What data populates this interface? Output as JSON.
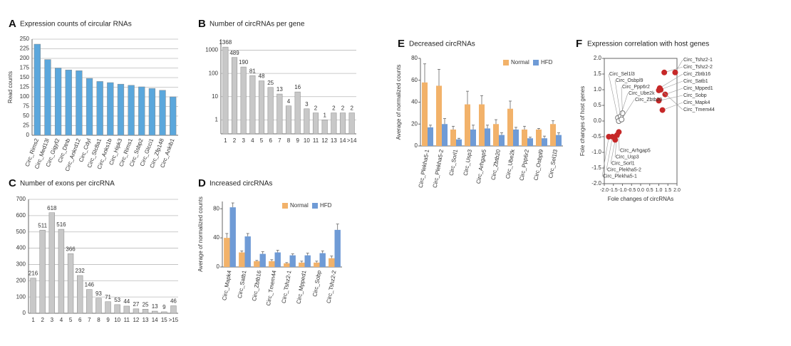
{
  "chart_data": [
    {
      "type": "bar",
      "panel": "A",
      "title": "Expression counts of circular RNAs",
      "y_label": "Read counts",
      "categories": [
        "Circ_Rims2",
        "Circ_Med13l",
        "Circ_Gigyf2",
        "Circ_Dtnb",
        "Circ_Ankrd12",
        "Circ_Cdyl",
        "Circ_Slc8a1",
        "Circ_Anks1b",
        "Circ_Hipk3",
        "Circ_Rims1",
        "Circ_Ssbp2",
        "Circ_Glcci1",
        "Circ_Zfp148",
        "Circ_Ankib1"
      ],
      "values": [
        237,
        197,
        175,
        170,
        168,
        148,
        140,
        137,
        133,
        130,
        126,
        122,
        117,
        100
      ],
      "color": "#5ba7dc",
      "ylim": [
        0,
        250
      ],
      "yticks": [
        0,
        25,
        50,
        75,
        100,
        125,
        150,
        175,
        200,
        225,
        250
      ],
      "grid": true
    },
    {
      "type": "bar",
      "panel": "B",
      "title": "Number of circRNAs per gene",
      "log_y": true,
      "categories": [
        "1",
        "2",
        "3",
        "4",
        "5",
        "6",
        "7",
        "8",
        "9",
        "10",
        "11",
        "12",
        "13",
        "14",
        ">14"
      ],
      "values": [
        1368,
        489,
        190,
        81,
        48,
        25,
        13,
        4,
        16,
        3,
        2,
        1,
        2,
        2,
        2
      ],
      "show_values": true,
      "color": "#c8c8c8",
      "ylim": [
        0.25,
        3000
      ],
      "yticks": [
        1,
        10,
        100,
        1000
      ],
      "grid": true
    },
    {
      "type": "bar",
      "panel": "C",
      "title": "Number of exons per circRNA",
      "categories": [
        "1",
        "2",
        "3",
        "4",
        "5",
        "6",
        "7",
        "8",
        "9",
        "10",
        "11",
        "12",
        "13",
        "14",
        "15",
        ">15"
      ],
      "values": [
        216,
        511,
        618,
        516,
        366,
        232,
        146,
        93,
        71,
        53,
        44,
        27,
        25,
        13,
        9,
        46
      ],
      "show_values": true,
      "color": "#c8c8c8",
      "ylim": [
        0,
        700
      ],
      "yticks": [
        0,
        100,
        200,
        300,
        400,
        500,
        600,
        700
      ],
      "grid": true
    },
    {
      "type": "groupbar",
      "panel": "D",
      "title": "Increased circRNAs",
      "y_label": "Average of normalized counts",
      "categories": [
        "Circ_Mapk4",
        "Circ_Satb1",
        "Circ_Zbtb16",
        "Circ_Tmem44",
        "Circ_Tshz2-1",
        "Circ_Mpped1",
        "Circ_Sobp",
        "Circ_Tshz2-2"
      ],
      "series": [
        {
          "name": "Normal",
          "color": "#f2b26a",
          "values": [
            40,
            20,
            8,
            8,
            5,
            6,
            6,
            12
          ],
          "errors": [
            6,
            2,
            1,
            2,
            1,
            2,
            2,
            3
          ]
        },
        {
          "name": "HFD",
          "color": "#6f9bd6",
          "values": [
            82,
            42,
            18,
            20,
            16,
            16,
            19,
            51
          ],
          "errors": [
            6,
            4,
            3,
            3,
            2,
            3,
            3,
            8
          ]
        }
      ],
      "ylim": [
        0,
        90
      ],
      "yticks": [
        0,
        40,
        80
      ],
      "legend": "top-right"
    },
    {
      "type": "groupbar",
      "panel": "E",
      "title": "Decreased circRNAs",
      "y_label": "Average of normalized counts",
      "categories": [
        "Circ_Plekha5-1",
        "Circ_Plekha5-2",
        "Circ_Sorl1",
        "Circ_Usp3",
        "Circ_Arhgap5",
        "Circ_Zbtb20",
        "Circ_Ube2k",
        "Circ_Ppp6r2",
        "Circ_Osbpl9",
        "Circ_Sel1l3"
      ],
      "series": [
        {
          "name": "Normal",
          "color": "#f2b26a",
          "values": [
            58,
            55,
            15,
            38,
            38,
            20,
            34,
            15,
            15,
            20
          ],
          "errors": [
            17,
            15,
            3,
            12,
            8,
            4,
            7,
            3,
            1,
            3
          ]
        },
        {
          "name": "HFD",
          "color": "#6f9bd6",
          "values": [
            17,
            20,
            6,
            15,
            16,
            10,
            15,
            7,
            7,
            10
          ],
          "errors": [
            2,
            5,
            1,
            4,
            3,
            2,
            2,
            1,
            2,
            2
          ]
        }
      ],
      "ylim": [
        0,
        80
      ],
      "yticks": [
        0,
        20,
        40,
        60,
        80
      ],
      "legend": "top-right"
    },
    {
      "type": "scatter",
      "panel": "F",
      "title": "Expression correlation with host genes",
      "x_label": "Fole changes of circRNAs",
      "y_label": "Fole changes of host genes",
      "points": [
        {
          "label": "Circ_Tshz2-1",
          "x": 1.9,
          "y": 1.55,
          "color": "#c62828"
        },
        {
          "label": "Circ_Tshz2-2",
          "x": 1.3,
          "y": 1.55,
          "color": "#c62828"
        },
        {
          "label": "Circ_Zbtb16",
          "x": 1.05,
          "y": 1.05,
          "color": "#c62828"
        },
        {
          "label": "Circ_Satb1",
          "x": 1.0,
          "y": 0.98,
          "color": "#c62828"
        },
        {
          "label": "Circ_Mpped1",
          "x": 1.35,
          "y": 0.85,
          "color": "#c62828"
        },
        {
          "label": "Circ_Sobp",
          "x": 1.0,
          "y": 0.65,
          "color": "#c62828"
        },
        {
          "label": "Circ_Mapk4",
          "x": 1.2,
          "y": 0.35,
          "color": "#c62828"
        },
        {
          "label": "Circ_Tmem44",
          "x": 1.1,
          "y": 1.0,
          "color": "#c62828"
        },
        {
          "label": "Circ_Sel1l3",
          "x": -1.25,
          "y": 0.1,
          "color": "#ffffff"
        },
        {
          "label": "Circ_Osbpl9",
          "x": -1.1,
          "y": 0.15,
          "color": "#ffffff"
        },
        {
          "label": "Circ_Ppp6r2",
          "x": -1.0,
          "y": 0.25,
          "color": "#ffffff"
        },
        {
          "label": "Circ_Ube2k",
          "x": -1.2,
          "y": 0.0,
          "color": "#ffffff"
        },
        {
          "label": "Circ_Zbtb20",
          "x": -1.05,
          "y": 0.05,
          "color": "#ffffff"
        },
        {
          "label": "Circ_Arhgap5",
          "x": -1.2,
          "y": -0.35,
          "color": "#c62828"
        },
        {
          "label": "Circ_Usp3",
          "x": -1.3,
          "y": -0.45,
          "color": "#c62828"
        },
        {
          "label": "Circ_Sorl1",
          "x": -1.4,
          "y": -0.6,
          "color": "#c62828"
        },
        {
          "label": "Circ_Plekha5-2",
          "x": -1.55,
          "y": -0.5,
          "color": "#c62828"
        },
        {
          "label": "Circ_Plekha5-1",
          "x": -1.75,
          "y": -0.5,
          "color": "#c62828"
        }
      ],
      "xlim": [
        -2,
        2
      ],
      "ylim": [
        -2,
        2
      ],
      "xticks": [
        {
          "value": -2,
          "label": "-2.0"
        },
        {
          "value": -1.5,
          "label": "-1.5"
        },
        {
          "value": -1,
          "label": "-1.0"
        },
        {
          "value": -0.5,
          "label": "-0.5"
        },
        {
          "value": 0,
          "label": "0.0"
        },
        {
          "value": 0.5,
          "label": "0.5"
        },
        {
          "value": 1,
          "label": "1.0"
        },
        {
          "value": 1.5,
          "label": "1.5"
        },
        {
          "value": 2,
          "label": "2.0"
        }
      ],
      "yticks": [
        {
          "value": -2,
          "label": "-2.0"
        },
        {
          "value": -1.5,
          "label": "-1.5"
        },
        {
          "value": -1,
          "label": "-1.0"
        },
        {
          "value": -0.5,
          "label": "-0.5"
        },
        {
          "value": 0,
          "label": "0.0"
        },
        {
          "value": 0.5,
          "label": "0.5"
        },
        {
          "value": 1,
          "label": "1.0"
        },
        {
          "value": 1.5,
          "label": "1.5"
        },
        {
          "value": 2,
          "label": "2.0"
        }
      ]
    }
  ]
}
